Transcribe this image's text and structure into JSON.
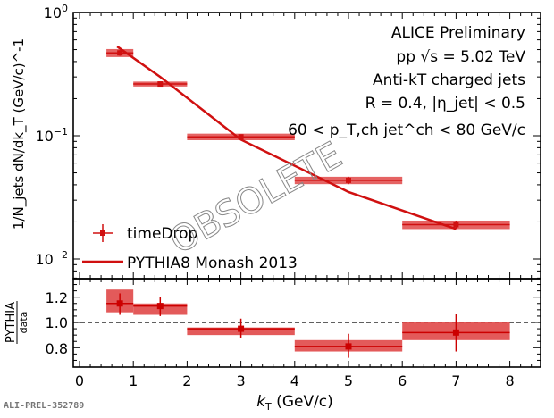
{
  "colors": {
    "data": "#d01010",
    "box": "#e04848",
    "axis": "#000000",
    "watermark": "#888888"
  },
  "chart_data": [
    {
      "type": "scatter",
      "panel": "main",
      "yscale": "log",
      "xlim": [
        -0.12,
        8.57
      ],
      "ylim": [
        0.007,
        1
      ],
      "xlabel": "kT (GeV/c)",
      "xlabel_main": "k",
      "xlabel_sub": "T",
      "xlabel_unit": " (GeV/c)",
      "ylabel": "1/N_jets dN/dk_T (GeV/c)^-1",
      "ylabel_parts": {
        "a": "1/",
        "N": "N",
        "jets": "jets",
        "b": " dN/dk",
        "T": "T",
        "c": " (GeV/c)",
        "exp": "−1"
      },
      "ytick_labels": [
        {
          "value": 1,
          "base": "10",
          "exp": "0"
        },
        {
          "value": 0.1,
          "base": "10",
          "exp": "−1"
        },
        {
          "value": 0.01,
          "base": "10",
          "exp": "−2"
        }
      ],
      "annotations": [
        "ALICE Preliminary",
        "pp √s = 5.02 TeV",
        "Anti-kT charged jets",
        "R = 0.4, |η_jet| < 0.5",
        "60 < p_T,ch jet^ch < 80 GeV/c"
      ],
      "legend": {
        "placement": "bottom-left",
        "entries": [
          "timeDrop",
          "PYTHIA8 Monash 2013"
        ]
      },
      "series": [
        {
          "name": "timeDrop",
          "kind": "points",
          "bins": [
            [
              0.5,
              1
            ],
            [
              1,
              2
            ],
            [
              2,
              4
            ],
            [
              4,
              6
            ],
            [
              6,
              8
            ]
          ],
          "x": [
            0.75,
            1.5,
            3,
            5,
            7
          ],
          "y": [
            0.47,
            0.263,
            0.098,
            0.0435,
            0.019
          ],
          "stat_err": [
            0.025,
            0.01,
            0.004,
            0.003,
            0.0015
          ],
          "sys_err": [
            0.035,
            0.012,
            0.006,
            0.003,
            0.0015
          ]
        },
        {
          "name": "PYTHIA8 Monash 2013",
          "kind": "line",
          "x": [
            0.7,
            1.5,
            3,
            5,
            7
          ],
          "y": [
            0.53,
            0.3,
            0.093,
            0.035,
            0.0175
          ]
        }
      ]
    },
    {
      "type": "scatter",
      "panel": "ratio",
      "xlim": [
        -0.12,
        8.57
      ],
      "ylim": [
        0.65,
        1.35
      ],
      "xtick_labels": [
        "0",
        "1",
        "2",
        "3",
        "4",
        "5",
        "6",
        "7",
        "8"
      ],
      "ytick_labels": [
        "1.2",
        "1.0",
        "0.8"
      ],
      "ylabel_num": "PYTHIA",
      "ylabel_den": "data",
      "reference_line": 1.0,
      "series": [
        {
          "name": "PYTHIA/data",
          "bins": [
            [
              0.5,
              1
            ],
            [
              1,
              2
            ],
            [
              2,
              4
            ],
            [
              4,
              6
            ],
            [
              6,
              8
            ]
          ],
          "x": [
            0.75,
            1.5,
            3,
            5,
            7
          ],
          "y": [
            1.15,
            1.13,
            0.95,
            0.81,
            0.92
          ],
          "box_low": [
            1.08,
            1.06,
            0.9,
            0.77,
            0.86
          ],
          "box_high": [
            1.26,
            1.15,
            0.96,
            0.86,
            1.0
          ],
          "err_low": [
            1.06,
            1.05,
            0.88,
            0.72,
            0.77
          ],
          "err_high": [
            1.23,
            1.2,
            1.03,
            0.91,
            1.07
          ]
        }
      ]
    }
  ],
  "watermark": "OBSOLETE",
  "figure_id": "ALI-PREL-352789"
}
